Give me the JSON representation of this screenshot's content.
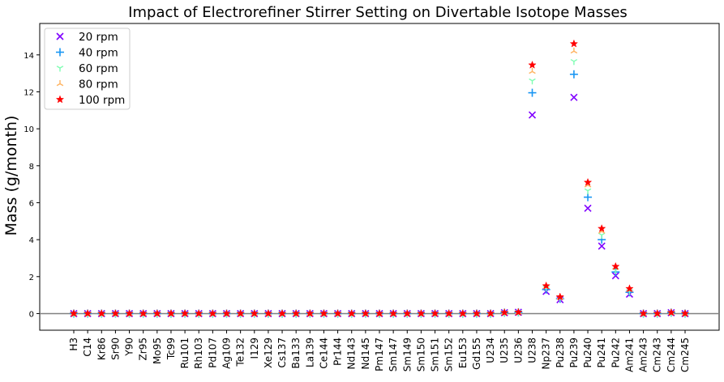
{
  "chart_data": {
    "type": "scatter",
    "title": "Impact of Electrorefiner Stirrer Setting on Divertable Isotope Masses",
    "xlabel": "",
    "ylabel": "Mass (g/month)",
    "ylim": [
      -0.9,
      15.7
    ],
    "yticks": [
      0,
      2,
      4,
      6,
      8,
      10,
      12,
      14
    ],
    "grid": false,
    "legend_position": "top-left",
    "reference_line": 0,
    "categories": [
      "H3",
      "C14",
      "Kr86",
      "Sr90",
      "Y90",
      "Zr95",
      "Mo95",
      "Tc99",
      "Ru101",
      "Rh103",
      "Pd107",
      "Ag109",
      "Te132",
      "I129",
      "Xe129",
      "Cs137",
      "Ba133",
      "La139",
      "Ce144",
      "Pr144",
      "Nd143",
      "Nd145",
      "Pm147",
      "Sm147",
      "Sm149",
      "Sm150",
      "Sm151",
      "Sm152",
      "Eu153",
      "Gd155",
      "U234",
      "U235",
      "U236",
      "U238",
      "Np237",
      "Pu238",
      "Pu239",
      "Pu240",
      "Pu241",
      "Pu242",
      "Am241",
      "Am243",
      "Cm243",
      "Cm244",
      "Cm245"
    ],
    "series": [
      {
        "name": "20 rpm",
        "marker": "x",
        "color": "#7f00ff",
        "values": [
          0,
          0,
          0,
          0,
          0,
          0,
          0,
          0,
          0,
          0,
          0,
          0,
          0,
          0,
          0,
          0,
          0,
          0,
          0,
          0,
          0,
          0,
          0,
          0,
          0,
          0,
          0,
          0,
          0,
          0,
          0,
          0.05,
          0.07,
          10.75,
          1.2,
          0.75,
          11.7,
          5.7,
          3.65,
          2.05,
          1.05,
          0,
          0,
          0.05,
          0
        ]
      },
      {
        "name": "40 rpm",
        "marker": "+",
        "color": "#1996f3",
        "values": [
          0,
          0,
          0,
          0,
          0,
          0,
          0,
          0,
          0,
          0,
          0,
          0,
          0,
          0,
          0,
          0,
          0,
          0,
          0,
          0,
          0,
          0,
          0,
          0,
          0,
          0,
          0,
          0,
          0,
          0,
          0,
          0.05,
          0.07,
          11.95,
          1.3,
          0.8,
          12.95,
          6.3,
          4.0,
          2.25,
          1.15,
          0,
          0,
          0.05,
          0
        ]
      },
      {
        "name": "60 rpm",
        "marker": "tri_down",
        "color": "#80feb3",
        "values": [
          0,
          0,
          0,
          0,
          0,
          0,
          0,
          0,
          0,
          0,
          0,
          0,
          0,
          0,
          0,
          0,
          0,
          0,
          0,
          0,
          0,
          0,
          0,
          0,
          0,
          0,
          0,
          0,
          0,
          0,
          0,
          0.05,
          0.07,
          12.6,
          1.4,
          0.85,
          13.65,
          6.65,
          4.25,
          2.35,
          1.2,
          0,
          0,
          0.05,
          0
        ]
      },
      {
        "name": "80 rpm",
        "marker": "tri_up",
        "color": "#ffb360",
        "values": [
          0,
          0,
          0,
          0,
          0,
          0,
          0,
          0,
          0,
          0,
          0,
          0,
          0,
          0,
          0,
          0,
          0,
          0,
          0,
          0,
          0,
          0,
          0,
          0,
          0,
          0,
          0,
          0,
          0,
          0,
          0,
          0.05,
          0.07,
          13.1,
          1.45,
          0.88,
          14.2,
          6.95,
          4.45,
          2.5,
          1.28,
          0,
          0,
          0.05,
          0
        ]
      },
      {
        "name": "100 rpm",
        "marker": "star",
        "color": "#ff0000",
        "values": [
          0,
          0,
          0,
          0,
          0,
          0,
          0,
          0,
          0,
          0,
          0,
          0,
          0,
          0,
          0,
          0,
          0,
          0,
          0,
          0,
          0,
          0,
          0,
          0,
          0,
          0,
          0,
          0,
          0,
          0,
          0,
          0.05,
          0.07,
          13.45,
          1.5,
          0.9,
          14.6,
          7.1,
          4.6,
          2.55,
          1.35,
          0,
          0,
          0.05,
          0
        ]
      }
    ]
  }
}
